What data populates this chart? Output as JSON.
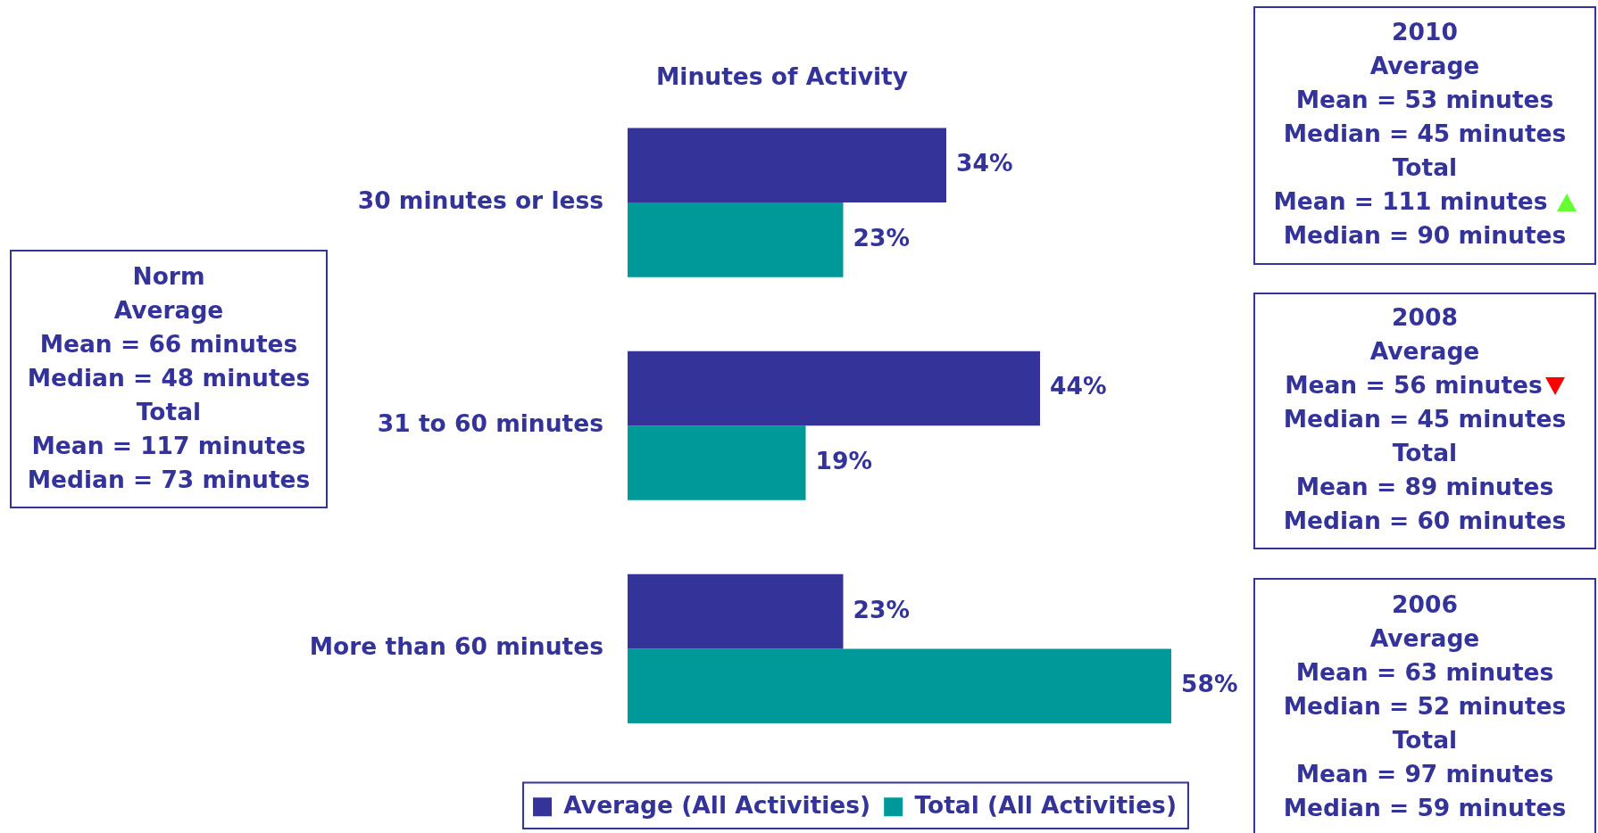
{
  "chart_data": {
    "type": "bar",
    "orientation": "horizontal",
    "title": "Minutes of Activity",
    "categories": [
      "30 minutes or less",
      "31 to 60 minutes",
      "More than 60 minutes"
    ],
    "series": [
      {
        "name": "Average (All Activities)",
        "color": "#333399",
        "values": [
          34,
          44,
          23
        ],
        "value_labels": [
          "34%",
          "44%",
          "23%"
        ]
      },
      {
        "name": "Total (All Activities)",
        "color": "#009999",
        "values": [
          23,
          19,
          58
        ],
        "value_labels": [
          "23%",
          "19%",
          "58%"
        ]
      }
    ],
    "legend": "bottom",
    "tick_labels": "y",
    "annotations": [
      "Norm\nAverage\nMean = 66 minutes\nMedian = 48 minutes\nTotal\nMean = 117 minutes\nMedian = 73 minutes",
      "2010\nAverage\nMean = 53 minutes\nMedian = 45 minutes\nTotal\nMean = 111 minutes\nMedian = 90 minutes",
      "2008\nAverage\nMean = 56 minutes\nMedian = 45 minutes\nTotal\nMean = 89 minutes\nMedian = 60 minutes",
      "2006\nAverage\nMean = 63 minutes\nMedian = 52 minutes\nTotal\nMean = 97 minutes\nMedian = 59 minutes"
    ]
  }
}
